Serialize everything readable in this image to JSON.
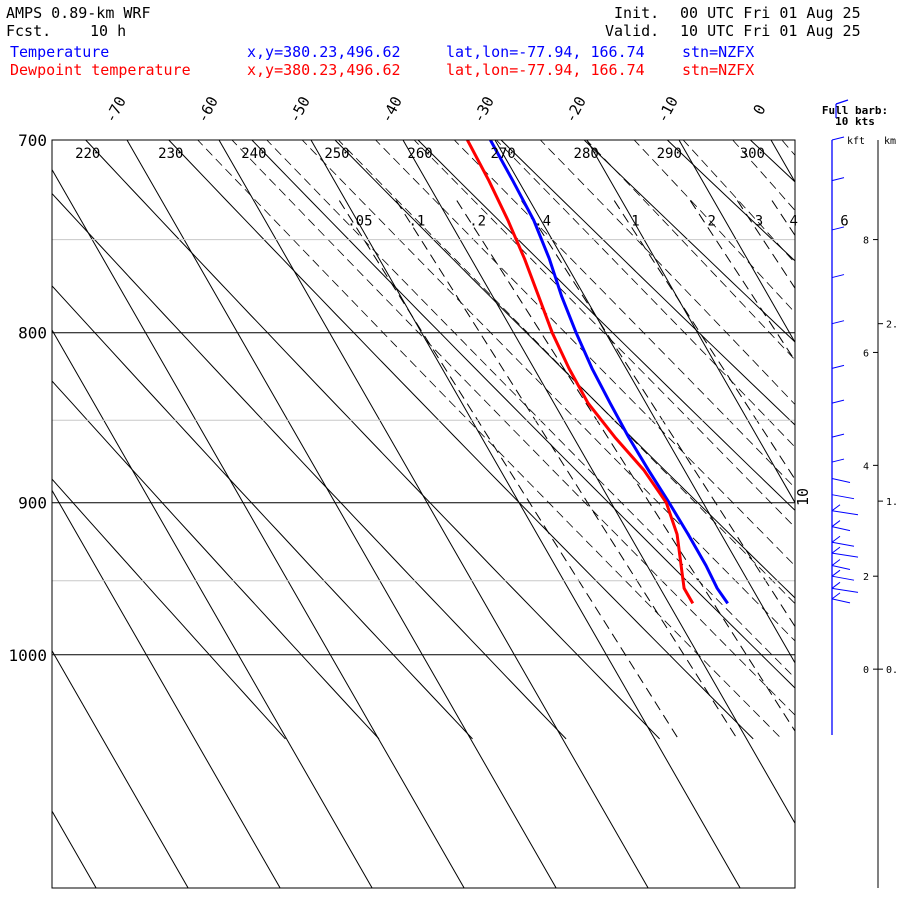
{
  "header": {
    "title": "AMPS 0.89-km WRF",
    "fcst_label": "Fcst.",
    "fcst_value": "10 h",
    "init_label": "Init.",
    "init_value": "00 UTC Fri 01 Aug 25",
    "valid_label": "Valid.",
    "valid_value": "10 UTC Fri 01 Aug 25"
  },
  "legend": [
    {
      "name": "Temperature",
      "xy": "x,y=380.23,496.62",
      "latlon": "lat,lon=-77.94, 166.74",
      "stn": "stn=NZFX",
      "color": "#0000ff"
    },
    {
      "name": "Dewpoint temperature",
      "xy": "x,y=380.23,496.62",
      "latlon": "lat,lon=-77.94, 166.74",
      "stn": "stn=NZFX",
      "color": "#ff0000"
    }
  ],
  "barb_legend": {
    "line1": "Full barb:",
    "line2": "10 kts"
  },
  "height_axis": {
    "kft_label": "kft",
    "km_label": "km",
    "kft_ticks": [
      {
        "label": "8",
        "p": 750
      },
      {
        "label": "6",
        "p": 811
      },
      {
        "label": "4",
        "p": 877
      },
      {
        "label": "2",
        "p": 947
      },
      {
        "label": "0",
        "p": 1010
      }
    ],
    "km_ticks": [
      {
        "label": "2.",
        "p": 795
      },
      {
        "label": "1.",
        "p": 899
      },
      {
        "label": "0.",
        "p": 1010
      }
    ]
  },
  "chart_data": {
    "type": "line",
    "diagram": "skew-T",
    "ylabel_ticks": [
      "700",
      "800",
      "900",
      "1000"
    ],
    "ylim_hpa": [
      700,
      1040
    ],
    "skew_temp_ticks": [
      "-70",
      "-60",
      "-50",
      "-40",
      "-30",
      "-20",
      "-10",
      "0"
    ],
    "potential_temp_labels": [
      "220",
      "230",
      "240",
      "250",
      "260",
      "270",
      "280",
      "290",
      "300"
    ],
    "mixing_ratio_labels": [
      ".05",
      ".1",
      ".2",
      ".4",
      "1",
      "2",
      "3",
      "4",
      "6"
    ],
    "moist_label": "10",
    "series": [
      {
        "name": "Temperature",
        "color": "#0000ff",
        "points": [
          [
            700,
            -30.5
          ],
          [
            720,
            -30.6
          ],
          [
            740,
            -30.8
          ],
          [
            760,
            -31.5
          ],
          [
            780,
            -32.5
          ],
          [
            800,
            -33.2
          ],
          [
            820,
            -33.7
          ],
          [
            840,
            -33.9
          ],
          [
            860,
            -34.0
          ],
          [
            880,
            -33.9
          ],
          [
            900,
            -33.7
          ],
          [
            920,
            -33.6
          ],
          [
            940,
            -33.6
          ],
          [
            955,
            -33.8
          ],
          [
            965,
            -33.6
          ]
        ]
      },
      {
        "name": "Dewpoint temperature",
        "color": "#ff0000",
        "points": [
          [
            700,
            -33.0
          ],
          [
            720,
            -33.2
          ],
          [
            740,
            -33.6
          ],
          [
            760,
            -34.2
          ],
          [
            780,
            -35.0
          ],
          [
            800,
            -35.8
          ],
          [
            820,
            -36.2
          ],
          [
            840,
            -36.3
          ],
          [
            860,
            -35.5
          ],
          [
            880,
            -34.4
          ],
          [
            900,
            -34.0
          ],
          [
            920,
            -34.8
          ],
          [
            940,
            -36.3
          ],
          [
            955,
            -37.4
          ],
          [
            965,
            -37.4
          ]
        ]
      }
    ]
  }
}
